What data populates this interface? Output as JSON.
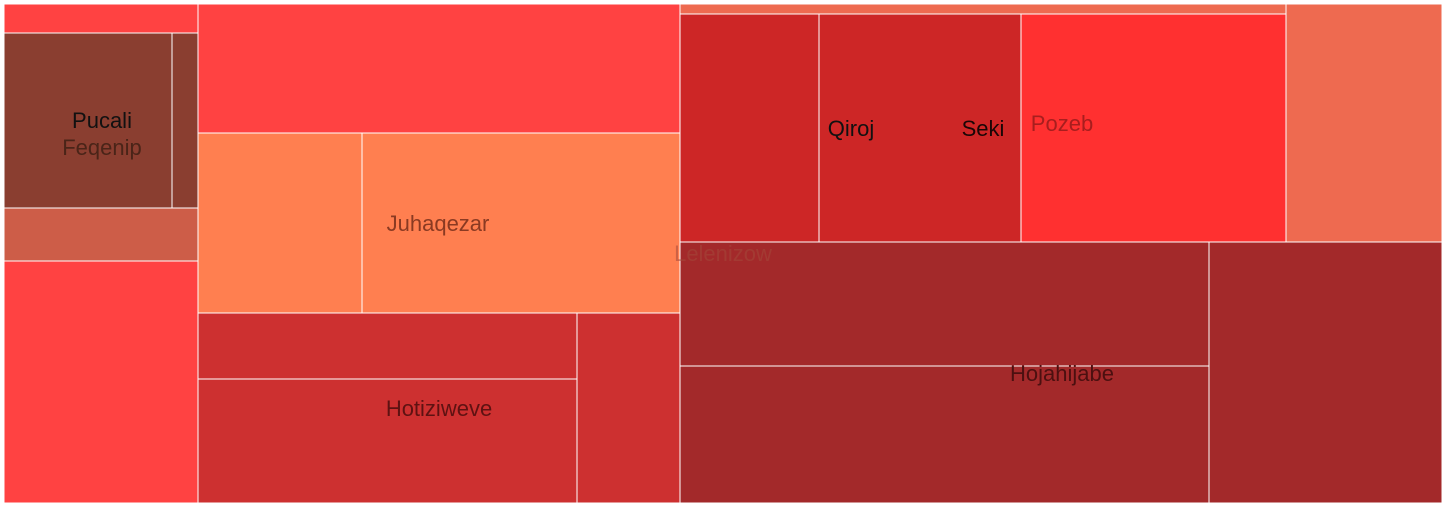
{
  "chart_data": {
    "type": "treemap",
    "labels": [
      "Lelenizow",
      "Pucali",
      "Feqenip",
      "Juhaqezar",
      "Hotiziweve",
      "Qiroj",
      "Seki",
      "Pozeb",
      "Hojahijabe"
    ],
    "colors": {
      "red": "#ff4242",
      "dark_brown": "#8a3e30",
      "terracotta": "#cd5d48",
      "orange": "#ff7f50",
      "brick": "#cd3030",
      "crimson": "#cd2626",
      "scarlet": "#ff3030",
      "coral": "#ee6a50",
      "maroon": "#a3292a",
      "border": "#ffffff"
    }
  }
}
